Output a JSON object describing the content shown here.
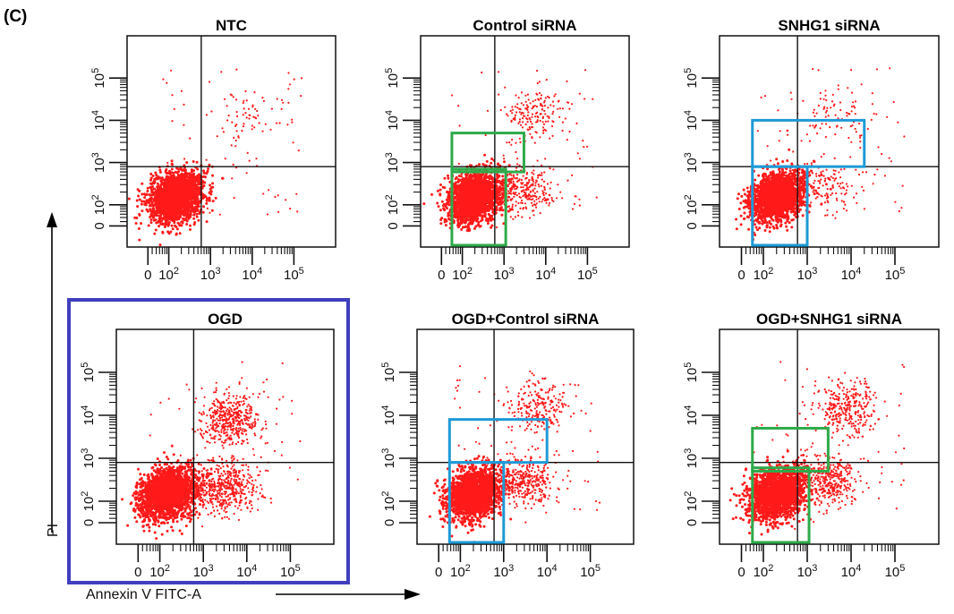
{
  "figure": {
    "panel_label": "(C)",
    "x_axis_label": "Annexin V FITC-A",
    "y_axis_label": "PI",
    "highlight_color": "#3f3fbf",
    "dot_color": "#ff1a1a",
    "green_gate_color": "#2eaa4a",
    "blue_gate_color": "#1e9ad6"
  },
  "chart_data": [
    {
      "type": "scatter",
      "title": "NTC",
      "xscale": "log",
      "yscale": "log",
      "xlim": [
        0,
        100000
      ],
      "ylim": [
        0,
        100000
      ],
      "x_ticks": [
        "0",
        "10^2",
        "10^3",
        "10^4",
        "10^5"
      ],
      "y_ticks": [
        "0",
        "10^2",
        "10^3",
        "10^4",
        "10^5"
      ],
      "quadrant_divider": {
        "x": 600,
        "y": 800
      },
      "populations": [
        {
          "name": "",
          "center": [
            150,
            150
          ],
          "count": 2200
        },
        {
          "name": "",
          "center": [
            6000,
            12000
          ],
          "count": 50
        }
      ],
      "gates": [],
      "highlighted": false
    },
    {
      "type": "scatter",
      "title": "Control siRNA",
      "xscale": "log",
      "yscale": "log",
      "xlim": [
        0,
        100000
      ],
      "ylim": [
        0,
        100000
      ],
      "x_ticks": [
        "0",
        "10^2",
        "10^3",
        "10^4",
        "10^5"
      ],
      "y_ticks": [
        "0",
        "10^2",
        "10^3",
        "10^4",
        "10^5"
      ],
      "quadrant_divider": {
        "x": 600,
        "y": 800
      },
      "populations": [
        {
          "name": "",
          "center": [
            200,
            150
          ],
          "count": 2000
        },
        {
          "name": "",
          "center": [
            5000,
            15000
          ],
          "count": 160
        },
        {
          "name": "",
          "center": [
            3000,
            200
          ],
          "count": 250
        }
      ],
      "gates": [
        {
          "color": "green",
          "x_range": [
            10,
            1100
          ],
          "y_range": [
            0,
            700
          ]
        },
        {
          "color": "green",
          "x_range": [
            10,
            3000
          ],
          "y_range": [
            600,
            5000
          ]
        }
      ],
      "highlighted": false
    },
    {
      "type": "scatter",
      "title": "SNHG1 siRNA",
      "xscale": "log",
      "yscale": "log",
      "xlim": [
        0,
        100000
      ],
      "ylim": [
        0,
        100000
      ],
      "x_ticks": [
        "0",
        "10^2",
        "10^3",
        "10^4",
        "10^5"
      ],
      "y_ticks": [
        "0",
        "10^2",
        "10^3",
        "10^4",
        "10^5"
      ],
      "quadrant_divider": {
        "x": 600,
        "y": 800
      },
      "populations": [
        {
          "name": "",
          "center": [
            200,
            150
          ],
          "count": 2000
        },
        {
          "name": "",
          "center": [
            5000,
            15000
          ],
          "count": 70
        },
        {
          "name": "",
          "center": [
            3000,
            250
          ],
          "count": 120
        }
      ],
      "gates": [
        {
          "color": "blue",
          "x_range": [
            10,
            1000
          ],
          "y_range": [
            0,
            800
          ]
        },
        {
          "color": "blue",
          "x_range": [
            10,
            20000
          ],
          "y_range": [
            800,
            10000
          ]
        }
      ],
      "highlighted": false
    },
    {
      "type": "scatter",
      "title": "OGD",
      "xscale": "log",
      "yscale": "log",
      "xlim": [
        0,
        100000
      ],
      "ylim": [
        0,
        100000
      ],
      "x_ticks": [
        "0",
        "10^2",
        "10^3",
        "10^4",
        "10^5"
      ],
      "y_ticks": [
        "0",
        "10^2",
        "10^3",
        "10^4",
        "10^5"
      ],
      "quadrant_divider": {
        "x": 600,
        "y": 800
      },
      "populations": [
        {
          "name": "",
          "center": [
            150,
            150
          ],
          "count": 2200
        },
        {
          "name": "",
          "center": [
            4000,
            8000
          ],
          "count": 450
        },
        {
          "name": "",
          "center": [
            3000,
            200
          ],
          "count": 500
        }
      ],
      "gates": [],
      "highlighted": true
    },
    {
      "type": "scatter",
      "title": "OGD+Control siRNA",
      "xscale": "log",
      "yscale": "log",
      "xlim": [
        0,
        100000
      ],
      "ylim": [
        0,
        100000
      ],
      "x_ticks": [
        "0",
        "10^2",
        "10^3",
        "10^4",
        "10^5"
      ],
      "y_ticks": [
        "0",
        "10^2",
        "10^3",
        "10^4",
        "10^5"
      ],
      "quadrant_divider": {
        "x": 600,
        "y": 800
      },
      "populations": [
        {
          "name": "",
          "center": [
            200,
            150
          ],
          "count": 2000
        },
        {
          "name": "",
          "center": [
            6000,
            15000
          ],
          "count": 220
        },
        {
          "name": "",
          "center": [
            3000,
            300
          ],
          "count": 350
        }
      ],
      "gates": [
        {
          "color": "blue",
          "x_range": [
            10,
            1000
          ],
          "y_range": [
            0,
            800
          ]
        },
        {
          "color": "blue",
          "x_range": [
            10,
            10000
          ],
          "y_range": [
            800,
            8000
          ]
        }
      ],
      "highlighted": false
    },
    {
      "type": "scatter",
      "title": "OGD+SNHG1 siRNA",
      "xscale": "log",
      "yscale": "log",
      "xlim": [
        0,
        100000
      ],
      "ylim": [
        0,
        100000
      ],
      "x_ticks": [
        "0",
        "10^2",
        "10^3",
        "10^4",
        "10^5"
      ],
      "y_ticks": [
        "0",
        "10^2",
        "10^3",
        "10^4",
        "10^5"
      ],
      "quadrant_divider": {
        "x": 600,
        "y": 800
      },
      "populations": [
        {
          "name": "",
          "center": [
            200,
            150
          ],
          "count": 2000
        },
        {
          "name": "",
          "center": [
            8000,
            15000
          ],
          "count": 300
        },
        {
          "name": "",
          "center": [
            3000,
            300
          ],
          "count": 400
        }
      ],
      "gates": [
        {
          "color": "green",
          "x_range": [
            10,
            1100
          ],
          "y_range": [
            0,
            600
          ]
        },
        {
          "color": "green",
          "x_range": [
            10,
            3000
          ],
          "y_range": [
            500,
            5000
          ]
        }
      ],
      "highlighted": false
    }
  ]
}
